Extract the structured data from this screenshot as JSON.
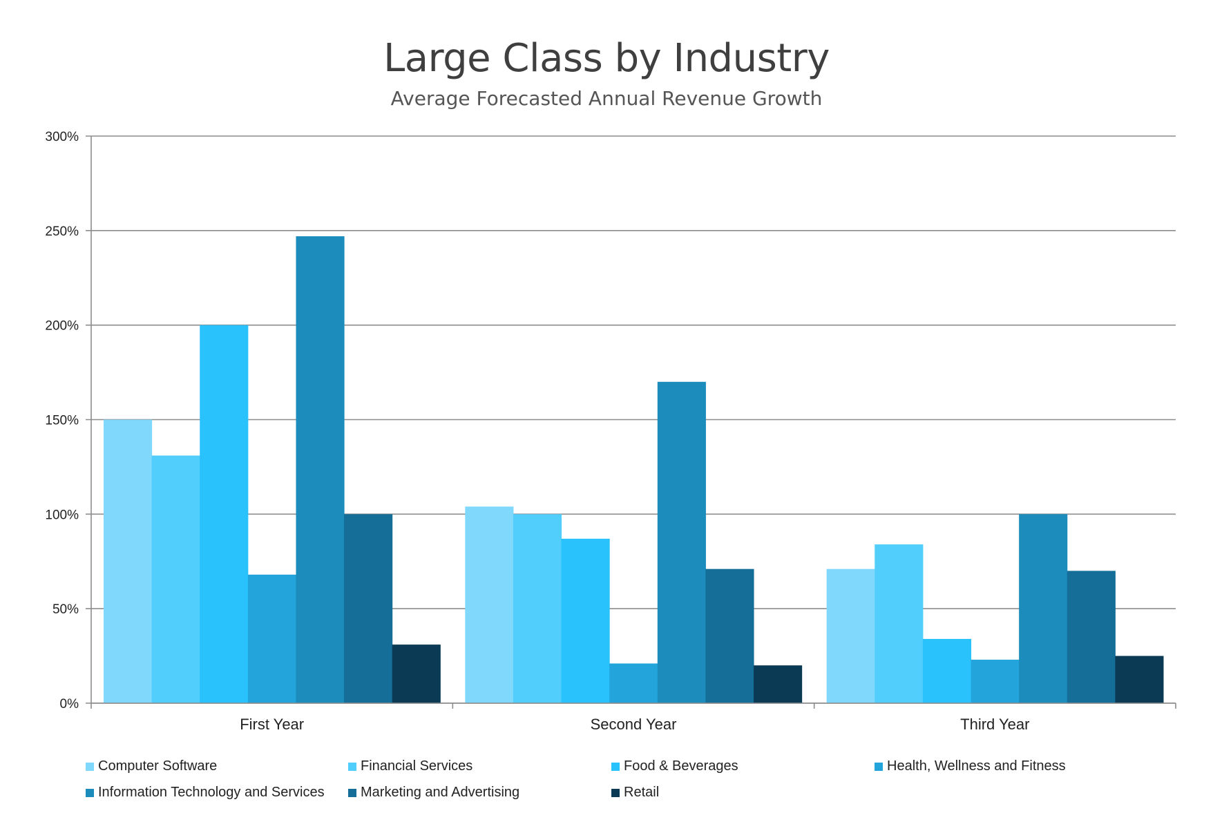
{
  "chart_data": {
    "type": "bar",
    "title": "Large Class by Industry",
    "subtitle": "Average Forecasted Annual Revenue Growth",
    "categories": [
      "First Year",
      "Second Year",
      "Third Year"
    ],
    "ylim": [
      0,
      300
    ],
    "yticks": [
      "0%",
      "50%",
      "100%",
      "150%",
      "200%",
      "250%",
      "300%"
    ],
    "grid": true,
    "legend_position": "bottom",
    "series": [
      {
        "name": "Computer Software",
        "color": "#80d8fd",
        "values": [
          150,
          104,
          71
        ]
      },
      {
        "name": "Financial Services",
        "color": "#52cefd",
        "values": [
          131,
          100,
          84
        ]
      },
      {
        "name": "Food & Beverages",
        "color": "#29c2fd",
        "values": [
          200,
          87,
          34
        ]
      },
      {
        "name": "Health, Wellness and Fitness",
        "color": "#23a4db",
        "values": [
          68,
          21,
          23
        ]
      },
      {
        "name": "Information Technology and Services",
        "color": "#1b8cbc",
        "values": [
          247,
          170,
          100
        ]
      },
      {
        "name": "Marketing and Advertising",
        "color": "#146e98",
        "values": [
          100,
          71,
          70
        ]
      },
      {
        "name": "Retail",
        "color": "#0b3a55",
        "values": [
          31,
          20,
          25
        ]
      }
    ]
  }
}
